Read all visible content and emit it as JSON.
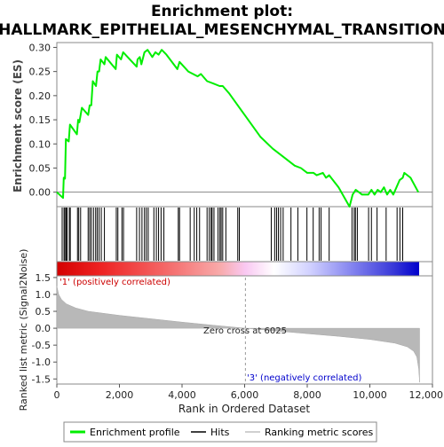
{
  "chart_data": {
    "type": "line",
    "title_line1": "Enrichment plot:",
    "title_line2": "HALLMARK_EPITHELIAL_MESENCHYMAL_TRANSITION",
    "top_panel": {
      "ylabel": "Enrichment score (ES)",
      "ylim": [
        -0.03,
        0.31
      ],
      "yticks": [
        "0.00",
        "0.05",
        "0.10",
        "0.15",
        "0.20",
        "0.25",
        "0.30"
      ],
      "ytick_values": [
        0.0,
        0.05,
        0.1,
        0.15,
        0.2,
        0.25,
        0.3
      ],
      "es_color": "#00ee00",
      "es_profile": [
        [
          0,
          0.0
        ],
        [
          200,
          -0.012
        ],
        [
          220,
          0.03
        ],
        [
          260,
          0.028
        ],
        [
          290,
          0.11
        ],
        [
          380,
          0.105
        ],
        [
          420,
          0.14
        ],
        [
          640,
          0.12
        ],
        [
          680,
          0.15
        ],
        [
          720,
          0.145
        ],
        [
          800,
          0.175
        ],
        [
          1000,
          0.16
        ],
        [
          1050,
          0.18
        ],
        [
          1100,
          0.18
        ],
        [
          1150,
          0.23
        ],
        [
          1250,
          0.22
        ],
        [
          1300,
          0.25
        ],
        [
          1350,
          0.25
        ],
        [
          1400,
          0.275
        ],
        [
          1520,
          0.265
        ],
        [
          1560,
          0.28
        ],
        [
          1880,
          0.255
        ],
        [
          1920,
          0.285
        ],
        [
          2050,
          0.275
        ],
        [
          2120,
          0.29
        ],
        [
          2550,
          0.26
        ],
        [
          2580,
          0.275
        ],
        [
          2650,
          0.28
        ],
        [
          2700,
          0.265
        ],
        [
          2800,
          0.29
        ],
        [
          2900,
          0.295
        ],
        [
          3050,
          0.28
        ],
        [
          3150,
          0.29
        ],
        [
          3250,
          0.285
        ],
        [
          3350,
          0.295
        ],
        [
          3500,
          0.285
        ],
        [
          3850,
          0.255
        ],
        [
          3920,
          0.27
        ],
        [
          4200,
          0.25
        ],
        [
          4350,
          0.245
        ],
        [
          4500,
          0.24
        ],
        [
          4600,
          0.245
        ],
        [
          4800,
          0.23
        ],
        [
          5000,
          0.225
        ],
        [
          5200,
          0.22
        ],
        [
          5300,
          0.22
        ],
        [
          5500,
          0.205
        ],
        [
          6000,
          0.16
        ],
        [
          6500,
          0.115
        ],
        [
          6900,
          0.09
        ],
        [
          7000,
          0.085
        ],
        [
          7300,
          0.07
        ],
        [
          7600,
          0.055
        ],
        [
          7800,
          0.05
        ],
        [
          8000,
          0.04
        ],
        [
          8200,
          0.04
        ],
        [
          8300,
          0.035
        ],
        [
          8500,
          0.04
        ],
        [
          8600,
          0.03
        ],
        [
          8700,
          0.035
        ],
        [
          9000,
          0.01
        ],
        [
          9350,
          -0.03
        ],
        [
          9450,
          -0.005
        ],
        [
          9550,
          0.005
        ],
        [
          9650,
          0.0
        ],
        [
          9750,
          -0.005
        ],
        [
          9850,
          -0.005
        ],
        [
          9950,
          -0.005
        ],
        [
          10050,
          0.005
        ],
        [
          10150,
          -0.005
        ],
        [
          10250,
          0.005
        ],
        [
          10350,
          0.0
        ],
        [
          10450,
          0.01
        ],
        [
          10550,
          -0.005
        ],
        [
          10650,
          0.005
        ],
        [
          10750,
          -0.005
        ],
        [
          10850,
          0.01
        ],
        [
          10950,
          0.025
        ],
        [
          11050,
          0.03
        ],
        [
          11100,
          0.04
        ],
        [
          11300,
          0.03
        ],
        [
          11550,
          0.0
        ]
      ]
    },
    "hit_ranks": [
      170,
      230,
      260,
      300,
      330,
      400,
      430,
      660,
      700,
      760,
      1000,
      1050,
      1100,
      1170,
      1240,
      1290,
      1350,
      1420,
      1520,
      1900,
      1950,
      2080,
      2130,
      2550,
      2640,
      2720,
      2800,
      2860,
      2920,
      3100,
      3180,
      3250,
      3330,
      3420,
      3880,
      3920,
      4260,
      4390,
      4470,
      4560,
      4800,
      4870,
      4930,
      4960,
      5020,
      5150,
      5210,
      5250,
      5300,
      5400,
      5780,
      5830,
      6850,
      6960,
      7020,
      7080,
      7150,
      7230,
      7480,
      7700,
      7990,
      8190,
      8380,
      8440,
      8700,
      9430,
      9500,
      9540,
      9600,
      9960,
      10050,
      10230,
      10520,
      10870,
      10960,
      11050
    ],
    "rank_metric": {
      "ylabel": "Ranked list metric (Signal2Noise)",
      "ylim": [
        -1.65,
        1.55
      ],
      "yticks": [
        "1.5",
        "1.0",
        "0.5",
        "0.0",
        "-0.5",
        "-1.0",
        "-1.5"
      ],
      "ytick_values": [
        1.5,
        1.0,
        0.5,
        0.0,
        -0.5,
        -1.0,
        -1.5
      ],
      "curve": [
        [
          0,
          1.25
        ],
        [
          60,
          1.0
        ],
        [
          150,
          0.85
        ],
        [
          300,
          0.72
        ],
        [
          600,
          0.6
        ],
        [
          1000,
          0.5
        ],
        [
          2000,
          0.38
        ],
        [
          3000,
          0.28
        ],
        [
          4000,
          0.18
        ],
        [
          5000,
          0.09
        ],
        [
          6025,
          0.0
        ],
        [
          7000,
          -0.08
        ],
        [
          8000,
          -0.16
        ],
        [
          9000,
          -0.24
        ],
        [
          10000,
          -0.33
        ],
        [
          10800,
          -0.44
        ],
        [
          11200,
          -0.55
        ],
        [
          11400,
          -0.68
        ],
        [
          11500,
          -0.85
        ],
        [
          11560,
          -1.2
        ],
        [
          11590,
          -1.6
        ]
      ],
      "fill_color": "#b8b8b8",
      "zero_cross_label": "Zero cross at 6025",
      "zero_cross_rank": 6025,
      "pos_label": "'1' (positively correlated)",
      "pos_color": "#cc0000",
      "neg_label": "'3' (negatively correlated)",
      "neg_color": "#0000cc"
    },
    "x_axis": {
      "xlabel": "Rank in Ordered Dataset",
      "xlim": [
        0,
        12000
      ],
      "xticks": [
        "0",
        "2,000",
        "4,000",
        "6,000",
        "8,000",
        "10,000",
        "12,000"
      ],
      "xtick_values": [
        0,
        2000,
        4000,
        6000,
        8000,
        10000,
        12000
      ],
      "list_size": 11590
    },
    "legend": {
      "placement": "bottom",
      "items": [
        {
          "label": "Enrichment profile",
          "color": "#00ee00"
        },
        {
          "label": "Hits",
          "color": "#000000"
        },
        {
          "label": "Ranking metric scores",
          "color": "#c0c0c0"
        }
      ]
    }
  }
}
